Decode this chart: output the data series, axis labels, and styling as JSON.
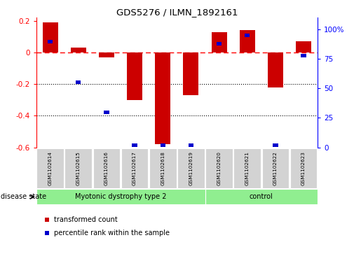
{
  "title": "GDS5276 / ILMN_1892161",
  "samples": [
    "GSM1102614",
    "GSM1102615",
    "GSM1102616",
    "GSM1102617",
    "GSM1102618",
    "GSM1102619",
    "GSM1102620",
    "GSM1102621",
    "GSM1102622",
    "GSM1102623"
  ],
  "transformed_count": [
    0.19,
    0.03,
    -0.03,
    -0.3,
    -0.58,
    -0.27,
    0.13,
    0.14,
    -0.22,
    0.07
  ],
  "percentile_rank": [
    90,
    55,
    30,
    2,
    2,
    2,
    88,
    95,
    2,
    78
  ],
  "groups": [
    {
      "label": "Myotonic dystrophy type 2",
      "start": 0,
      "end": 6,
      "color": "#90EE90"
    },
    {
      "label": "control",
      "start": 6,
      "end": 10,
      "color": "#90EE90"
    }
  ],
  "ylim_left": [
    -0.6,
    0.22
  ],
  "ylim_right": [
    0,
    110
  ],
  "yticks_left": [
    -0.6,
    -0.4,
    -0.2,
    0.0,
    0.2
  ],
  "yticks_right": [
    0,
    25,
    50,
    75,
    100
  ],
  "ytick_labels_right": [
    "0",
    "25",
    "50",
    "75",
    "100%"
  ],
  "bar_color_red": "#CC0000",
  "bar_color_blue": "#0000CC",
  "dotted_lines": [
    -0.2,
    -0.4
  ],
  "bar_width": 0.55,
  "disease_state_label": "disease state",
  "legend_items": [
    {
      "color": "#CC0000",
      "label": "transformed count"
    },
    {
      "color": "#0000CC",
      "label": "percentile rank within the sample"
    }
  ]
}
